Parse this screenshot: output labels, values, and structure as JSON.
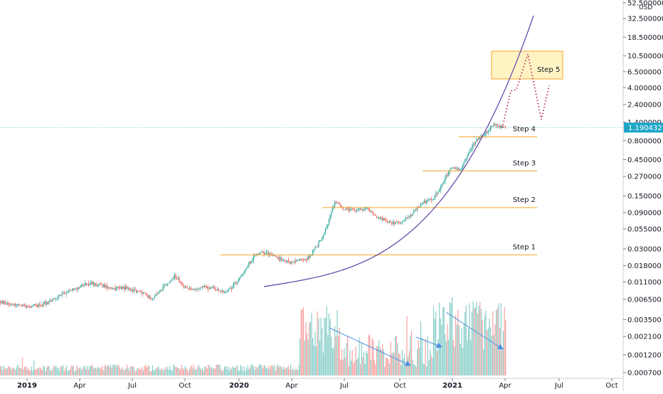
{
  "chart_data": {
    "type": "candlestick",
    "y_scale": "log",
    "y_unit": "USD",
    "y_ticks": [
      "52.500000",
      "32.500000",
      "18.500000",
      "10.500000",
      "6.500000",
      "4.000000",
      "2.400000",
      "1.400000",
      "0.800000",
      "0.450000",
      "0.270000",
      "0.150000",
      "0.090000",
      "0.055000",
      "0.030000",
      "0.018000",
      "0.011000",
      "0.006500",
      "0.003500",
      "0.002100",
      "0.001200",
      "0.000700"
    ],
    "x_ticks": [
      {
        "label": "2019",
        "bold": true
      },
      {
        "label": "Apr",
        "bold": false
      },
      {
        "label": "Jul",
        "bold": false
      },
      {
        "label": "Oct",
        "bold": false
      },
      {
        "label": "2020",
        "bold": true
      },
      {
        "label": "Apr",
        "bold": false
      },
      {
        "label": "Jul",
        "bold": false
      },
      {
        "label": "Oct",
        "bold": false
      },
      {
        "label": "2021",
        "bold": true
      },
      {
        "label": "Apr",
        "bold": false
      },
      {
        "label": "Jul",
        "bold": false
      },
      {
        "label": "Oct",
        "bold": false
      }
    ],
    "current_price": "1.190432",
    "steps": [
      {
        "label": "Step 1",
        "level": 0.025
      },
      {
        "label": "Step 2",
        "level": 0.105
      },
      {
        "label": "Step 3",
        "level": 0.32
      },
      {
        "label": "Step 4",
        "level": 0.9
      },
      {
        "label": "Step 5",
        "level": null
      }
    ],
    "colors": {
      "up": "#26a69a",
      "down": "#ef5350",
      "step_line": "#f5a623",
      "curve": "#5b3fa8",
      "projection": "#b2183b",
      "arrow": "#4a90e2",
      "price_tag": "#1ea5c8",
      "target_box_fill": "#fff3c4",
      "target_box_stroke": "#f5a623",
      "price_line": "#1ea5c8"
    }
  }
}
